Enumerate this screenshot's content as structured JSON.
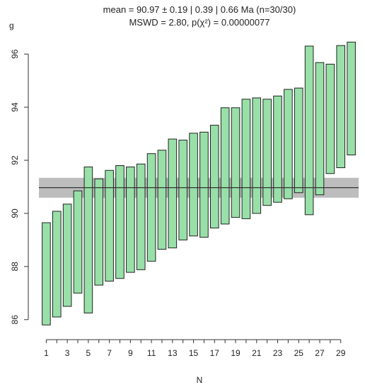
{
  "chart_data": {
    "type": "bar",
    "title_line1": "mean = 90.97 ± 0.19 | 0.39 | 0.66 Ma (n=30/30)",
    "title_line2": "MSWD = 2.80, p(χ²) = 0.00000077",
    "ylabel": "g",
    "xlabel": "N",
    "ylim": [
      85.7,
      96.7
    ],
    "yticks": [
      86,
      88,
      90,
      92,
      94,
      96
    ],
    "xticks": [
      1,
      3,
      5,
      7,
      9,
      11,
      13,
      15,
      17,
      19,
      21,
      23,
      25,
      27,
      29
    ],
    "xlim": [
      0.3,
      30.7
    ],
    "mean": 90.97,
    "mean_band": [
      90.59,
      91.34
    ],
    "bar_color": "#98e0a8",
    "bar_edge_color": "#222222",
    "band_color": "#bdbdbd",
    "bars": [
      {
        "n": 1,
        "low": 85.8,
        "high": 89.65
      },
      {
        "n": 2,
        "low": 86.1,
        "high": 90.08
      },
      {
        "n": 3,
        "low": 86.5,
        "high": 90.35
      },
      {
        "n": 4,
        "low": 87.0,
        "high": 90.85
      },
      {
        "n": 5,
        "low": 86.25,
        "high": 91.75
      },
      {
        "n": 6,
        "low": 87.3,
        "high": 91.3
      },
      {
        "n": 7,
        "low": 87.45,
        "high": 91.62
      },
      {
        "n": 8,
        "low": 87.55,
        "high": 91.8
      },
      {
        "n": 9,
        "low": 87.78,
        "high": 91.75
      },
      {
        "n": 10,
        "low": 87.88,
        "high": 91.86
      },
      {
        "n": 11,
        "low": 88.2,
        "high": 92.25
      },
      {
        "n": 12,
        "low": 88.65,
        "high": 92.38
      },
      {
        "n": 13,
        "low": 88.7,
        "high": 92.8
      },
      {
        "n": 14,
        "low": 89.0,
        "high": 92.76
      },
      {
        "n": 15,
        "low": 89.15,
        "high": 93.02
      },
      {
        "n": 16,
        "low": 89.1,
        "high": 93.06
      },
      {
        "n": 17,
        "low": 89.45,
        "high": 93.32
      },
      {
        "n": 18,
        "low": 89.6,
        "high": 93.98
      },
      {
        "n": 19,
        "low": 89.85,
        "high": 93.98
      },
      {
        "n": 20,
        "low": 89.8,
        "high": 94.3
      },
      {
        "n": 21,
        "low": 90.0,
        "high": 94.35
      },
      {
        "n": 22,
        "low": 90.3,
        "high": 94.3
      },
      {
        "n": 23,
        "low": 90.42,
        "high": 94.42
      },
      {
        "n": 24,
        "low": 90.55,
        "high": 94.67
      },
      {
        "n": 25,
        "low": 90.78,
        "high": 94.72
      },
      {
        "n": 26,
        "low": 89.95,
        "high": 96.3
      },
      {
        "n": 27,
        "low": 90.7,
        "high": 95.68
      },
      {
        "n": 28,
        "low": 91.5,
        "high": 95.62
      },
      {
        "n": 29,
        "low": 91.72,
        "high": 96.32
      },
      {
        "n": 30,
        "low": 92.2,
        "high": 96.45
      }
    ]
  }
}
